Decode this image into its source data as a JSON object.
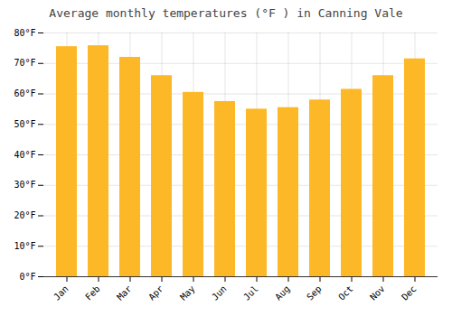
{
  "chart_data": {
    "type": "bar",
    "title": "Average monthly temperatures (°F ) in Canning Vale",
    "categories": [
      "Jan",
      "Feb",
      "Mar",
      "Apr",
      "May",
      "Jun",
      "Jul",
      "Aug",
      "Sep",
      "Oct",
      "Nov",
      "Dec"
    ],
    "values": [
      75.5,
      75.8,
      72.0,
      66.0,
      60.5,
      57.5,
      55.0,
      55.5,
      58.0,
      61.5,
      66.0,
      71.5
    ],
    "color": "#FDB827",
    "ylim": [
      0,
      80
    ],
    "yticks": [
      {
        "value": 0,
        "label": "0°F"
      },
      {
        "value": 10,
        "label": "10°F"
      },
      {
        "value": 20,
        "label": "20°F"
      },
      {
        "value": 30,
        "label": "30°F"
      },
      {
        "value": 40,
        "label": "40°F"
      },
      {
        "value": 50,
        "label": "50°F"
      },
      {
        "value": 60,
        "label": "60°F"
      },
      {
        "value": 70,
        "label": "70°F"
      },
      {
        "value": 80,
        "label": "80°F"
      }
    ],
    "grid": true
  }
}
